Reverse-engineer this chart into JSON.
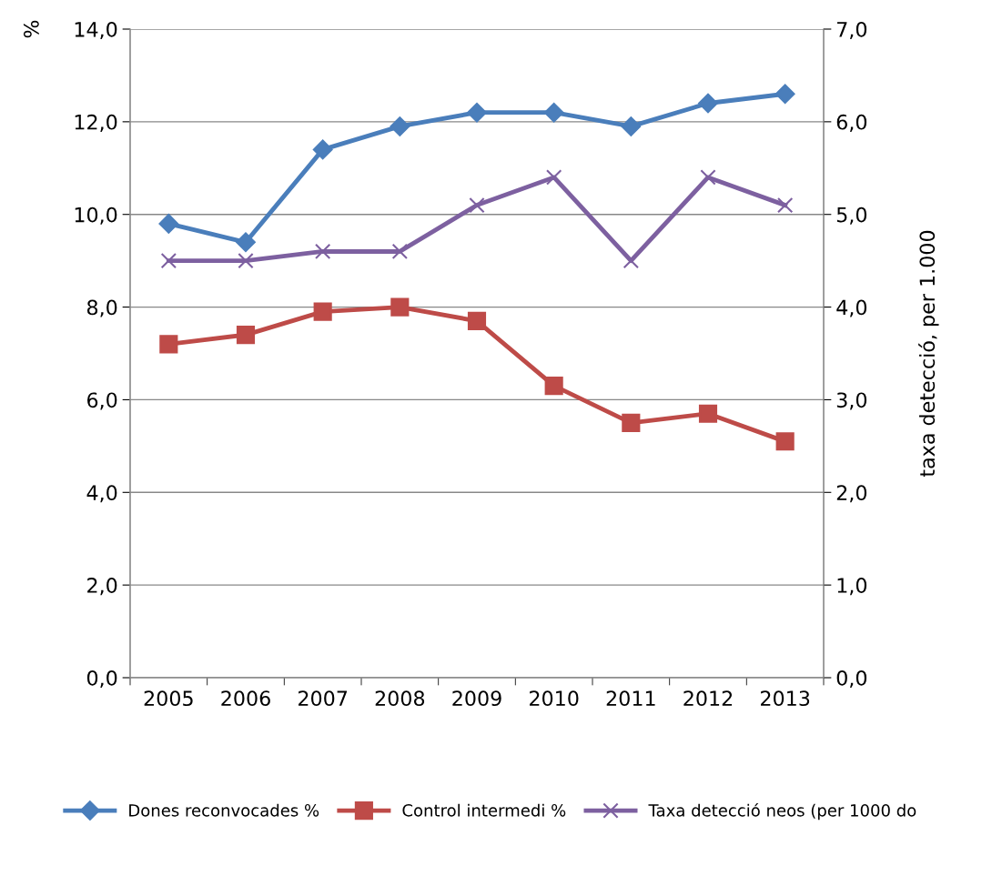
{
  "chart_data": {
    "type": "line",
    "ylabel": "%",
    "y2label": "taxa detecció, per 1.000",
    "categories": [
      "2005",
      "2006",
      "2007",
      "2008",
      "2009",
      "2010",
      "2011",
      "2012",
      "2013"
    ],
    "series": [
      {
        "name": "Dones reconvocades %",
        "color": "#4a7ebb",
        "marker": "diamond",
        "values": [
          9.8,
          9.4,
          11.4,
          11.9,
          12.2,
          12.2,
          11.9,
          12.4,
          12.6
        ]
      },
      {
        "name": "Control intermedi %",
        "color": "#be4b48",
        "marker": "square",
        "values": [
          7.2,
          7.4,
          7.9,
          8.0,
          7.7,
          6.3,
          5.5,
          5.7,
          5.1
        ]
      },
      {
        "name": "Taxa detecció neos (per 1000 do",
        "color": "#7d60a0",
        "marker": "cross",
        "axis": "y2",
        "values": [
          4.5,
          4.5,
          4.6,
          4.6,
          5.1,
          5.4,
          4.5,
          5.4,
          5.1
        ]
      }
    ],
    "ylim": [
      0,
      14
    ],
    "yticks": [
      {
        "value": 0,
        "label": "0,0"
      },
      {
        "value": 2,
        "label": "2,0"
      },
      {
        "value": 4,
        "label": "4,0"
      },
      {
        "value": 6,
        "label": "6,0"
      },
      {
        "value": 8,
        "label": "8,0"
      },
      {
        "value": 10,
        "label": "10,0"
      },
      {
        "value": 12,
        "label": "12,0"
      },
      {
        "value": 14,
        "label": "14,0"
      }
    ],
    "y2lim": [
      0,
      7
    ],
    "y2ticks": [
      {
        "value": 0,
        "label": "0,0"
      },
      {
        "value": 1,
        "label": "1,0"
      },
      {
        "value": 2,
        "label": "2,0"
      },
      {
        "value": 3,
        "label": "3,0"
      },
      {
        "value": 4,
        "label": "4,0"
      },
      {
        "value": 5,
        "label": "5,0"
      },
      {
        "value": 6,
        "label": "6,0"
      },
      {
        "value": 7,
        "label": "7,0"
      }
    ],
    "grid": "y",
    "legend": "bottom",
    "line_style": "solid"
  }
}
